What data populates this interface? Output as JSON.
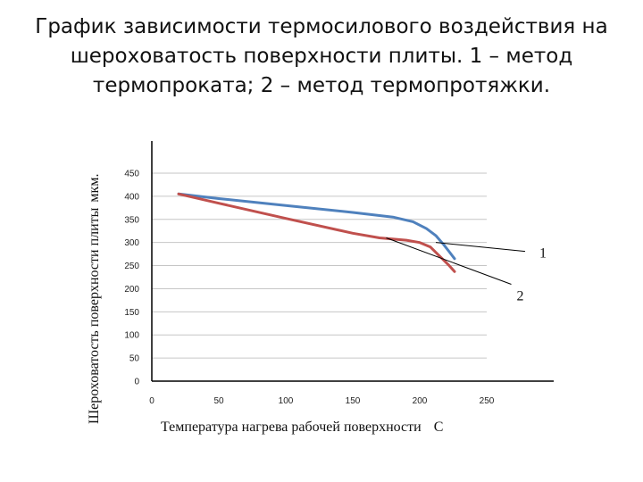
{
  "slide": {
    "title_lines": [
      "График зависимости термосилового воздействия на",
      "шероховатость поверхности плиты. 1 – метод",
      "термопроката; 2 – метод термопротяжки."
    ]
  },
  "chart_data": {
    "type": "line",
    "title": "График зависимости термосилового воздействия на шероховатость поверхности плиты. 1 – метод термопроката; 2 – метод термопротяжки.",
    "xlabel": "Температура нагрева рабочей поверхности",
    "xlabel_unit": "С",
    "ylabel": "Шероховатость поверхности плиты",
    "ylabel_unit": "мкм.",
    "xlim": [
      0,
      300
    ],
    "ylim": [
      0,
      450
    ],
    "xticks": [
      0,
      50,
      100,
      150,
      200,
      250
    ],
    "yticks": [
      0,
      50,
      100,
      150,
      200,
      250,
      300,
      350,
      400,
      450
    ],
    "grid": "horizontal",
    "series": [
      {
        "name": "1",
        "color": "#4f81bd",
        "x": [
          20,
          50,
          100,
          150,
          180,
          195,
          205,
          212,
          218,
          222,
          226
        ],
        "y": [
          405,
          395,
          380,
          365,
          355,
          345,
          330,
          315,
          295,
          280,
          265
        ]
      },
      {
        "name": "2",
        "color": "#c0504d",
        "x": [
          20,
          50,
          100,
          150,
          170,
          190,
          200,
          208,
          215,
          222,
          226
        ],
        "y": [
          405,
          385,
          352,
          320,
          310,
          305,
          300,
          290,
          270,
          250,
          237
        ]
      }
    ],
    "annotations": [
      {
        "label": "1",
        "series": "1",
        "point": [
          212,
          300
        ]
      },
      {
        "label": "2",
        "series": "2",
        "point": [
          175,
          310
        ]
      }
    ]
  }
}
